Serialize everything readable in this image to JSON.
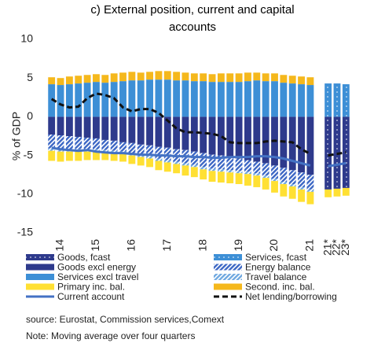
{
  "chart_data": {
    "type": "stacked-bar-line",
    "title": "c) External position, current and capital accounts",
    "y_label": "% of GDP",
    "ylim": [
      -15,
      10
    ],
    "yticks": [
      -15,
      -10,
      -5,
      0,
      5,
      10
    ],
    "grid": false,
    "categories": [
      null,
      "14",
      null,
      null,
      null,
      "15",
      null,
      null,
      null,
      "16",
      null,
      null,
      null,
      "17",
      null,
      null,
      null,
      "18",
      null,
      null,
      null,
      "19",
      null,
      null,
      null,
      "20",
      null,
      null,
      null,
      "21",
      null,
      "21*",
      "22*",
      "23*"
    ],
    "series": [
      {
        "name": "Goods, fcast",
        "color": "#2e3a8c",
        "pattern": "dots",
        "kind": "bar",
        "values": [
          null,
          null,
          null,
          null,
          null,
          null,
          null,
          null,
          null,
          null,
          null,
          null,
          null,
          null,
          null,
          null,
          null,
          null,
          null,
          null,
          null,
          null,
          null,
          null,
          null,
          null,
          null,
          null,
          null,
          null,
          null,
          -9.4,
          -9.3,
          -9.2
        ]
      },
      {
        "name": "Services, fcast",
        "color": "#3d8fd6",
        "pattern": "dots",
        "kind": "bar",
        "values": [
          null,
          null,
          null,
          null,
          null,
          null,
          null,
          null,
          null,
          null,
          null,
          null,
          null,
          null,
          null,
          null,
          null,
          null,
          null,
          null,
          null,
          null,
          null,
          null,
          null,
          null,
          null,
          null,
          null,
          null,
          null,
          4.3,
          4.3,
          4.2
        ]
      },
      {
        "name": "Goods excl energy",
        "color": "#2e3a8c",
        "pattern": "solid",
        "kind": "bar",
        "values": [
          -2.3,
          -2.4,
          -2.5,
          -2.6,
          -2.7,
          -2.8,
          -3.0,
          -3.1,
          -3.3,
          -3.4,
          -3.6,
          -3.7,
          -3.9,
          -4.0,
          -4.2,
          -4.3,
          -4.5,
          -4.7,
          -4.9,
          -5.0,
          -5.2,
          -5.4,
          -5.6,
          -5.8,
          -6.0,
          -6.3,
          -6.6,
          -6.9,
          -7.2,
          -7.5,
          null,
          null,
          null,
          null
        ]
      },
      {
        "name": "Energy balance",
        "color": "#3b66c4",
        "pattern": "hatch",
        "kind": "bar",
        "values": [
          -1.8,
          -1.8,
          -1.7,
          -1.6,
          -1.5,
          -1.4,
          -1.3,
          -1.3,
          -1.2,
          -1.3,
          -1.3,
          -1.4,
          -1.5,
          -1.6,
          -1.6,
          -1.7,
          -1.7,
          -1.8,
          -1.8,
          -1.8,
          -1.7,
          -1.6,
          -1.5,
          -1.5,
          -1.6,
          -1.7,
          -1.8,
          -1.8,
          -1.9,
          -1.9,
          null,
          null,
          null,
          null
        ]
      },
      {
        "name": "Services excl travel",
        "color": "#3d8fd6",
        "pattern": "solid",
        "kind": "bar",
        "values": [
          4.2,
          4.1,
          4.2,
          4.3,
          4.4,
          4.5,
          4.4,
          4.5,
          4.6,
          4.7,
          4.7,
          4.8,
          4.8,
          4.8,
          4.7,
          4.7,
          4.6,
          4.6,
          4.5,
          4.5,
          4.5,
          4.5,
          4.6,
          4.7,
          4.6,
          4.6,
          4.4,
          4.3,
          4.2,
          4.1,
          null,
          null,
          null,
          null
        ]
      },
      {
        "name": "Travel balance",
        "color": "#6fa8e0",
        "pattern": "hatch",
        "kind": "bar",
        "values": [
          -0.3,
          -0.3,
          -0.3,
          -0.3,
          -0.3,
          -0.3,
          -0.3,
          -0.3,
          -0.3,
          -0.3,
          -0.3,
          -0.3,
          -0.3,
          -0.3,
          -0.3,
          -0.3,
          -0.3,
          -0.3,
          -0.3,
          -0.3,
          -0.3,
          -0.3,
          -0.3,
          -0.3,
          -0.3,
          -0.3,
          -0.3,
          -0.3,
          -0.3,
          -0.3,
          null,
          null,
          null,
          null
        ]
      },
      {
        "name": "Primary inc. bal.",
        "color": "#ffe033",
        "pattern": "solid",
        "kind": "bar",
        "values": [
          -1.3,
          -1.3,
          -1.2,
          -1.2,
          -1.1,
          -1.1,
          -1.0,
          -1.0,
          -1.0,
          -1.1,
          -1.1,
          -1.1,
          -1.2,
          -1.2,
          -1.2,
          -1.3,
          -1.3,
          -1.3,
          -1.4,
          -1.4,
          -1.4,
          -1.4,
          -1.5,
          -1.5,
          -1.5,
          -1.5,
          -1.6,
          -1.6,
          -1.6,
          -1.6,
          null,
          -1.0,
          -1.0,
          -1.0
        ]
      },
      {
        "name": "Second. inc. bal.",
        "color": "#f5b81c",
        "pattern": "solid",
        "kind": "bar",
        "values": [
          0.9,
          0.9,
          1.0,
          1.0,
          1.0,
          1.0,
          1.0,
          1.1,
          1.1,
          1.1,
          1.0,
          1.0,
          1.1,
          1.1,
          1.1,
          1.0,
          1.0,
          1.0,
          1.0,
          1.1,
          1.1,
          1.1,
          1.1,
          1.0,
          1.0,
          1.0,
          1.0,
          1.0,
          1.0,
          1.0,
          null,
          null,
          null,
          null
        ]
      },
      {
        "name": "Current account",
        "color": "#4472c4",
        "kind": "line",
        "dash": false,
        "values": [
          -4.0,
          -4.2,
          -4.3,
          -4.4,
          -4.3,
          -4.5,
          -4.6,
          -4.7,
          -4.7,
          -4.8,
          -4.9,
          -4.9,
          -5.0,
          -5.0,
          -5.1,
          -5.1,
          -5.2,
          -5.2,
          -5.3,
          -5.3,
          -5.2,
          -5.2,
          -5.2,
          -5.1,
          -5.1,
          -5.2,
          -5.4,
          -5.7,
          -6.0,
          -6.3,
          null,
          -6.4,
          -6.2,
          -6.0
        ]
      },
      {
        "name": "Net lending/borrowing",
        "color": "#111111",
        "kind": "line",
        "dash": true,
        "values": [
          2.3,
          1.6,
          1.2,
          1.3,
          2.4,
          3.0,
          2.8,
          2.4,
          1.2,
          0.7,
          1.0,
          1.0,
          0.5,
          -0.5,
          -1.5,
          -2.0,
          -2.0,
          -2.1,
          -2.2,
          -2.5,
          -3.3,
          -3.4,
          -3.4,
          -3.4,
          -3.2,
          -3.1,
          -3.2,
          -3.3,
          -4.2,
          -4.8,
          null,
          -5.0,
          -4.8,
          -4.6
        ]
      }
    ],
    "source": "source: Eurostat, Commission services,Comext",
    "note": "Note: Moving average over four quarters"
  }
}
